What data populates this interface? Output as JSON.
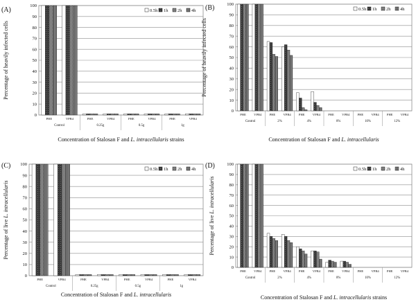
{
  "colors": {
    "series": [
      "#ffffff",
      "#3a3a3a",
      "#8e8e8e",
      "#5a5a5a"
    ],
    "grid": "#8c8c8c",
    "bar_edge": "#222222",
    "background": "#ffffff"
  },
  "chart_data": [
    {
      "type": "bar",
      "panel_label": "(A)",
      "title": "",
      "xlabel": "Concentration of Stalosan F and L. intracellularis strains",
      "xlabel_parts": [
        {
          "text": "Concentration of Stalosan F and ",
          "italic": false
        },
        {
          "text": "L. intracellularis",
          "italic": true
        },
        {
          "text": " strains",
          "italic": false
        }
      ],
      "ylabel": "Percentage of heavily infected cells",
      "ylabel_parts": [
        {
          "text": "Percentage of heavily infected cells",
          "italic": false
        }
      ],
      "ylim": [
        0,
        100
      ],
      "yticks": [
        0,
        10,
        20,
        30,
        40,
        50,
        60,
        70,
        80,
        90,
        100
      ],
      "grid": true,
      "legend_position": "top-right",
      "series_names": [
        "0.5h",
        "1h",
        "2h",
        "4h"
      ],
      "categories": [
        {
          "group": "Control",
          "strains": [
            {
              "name": "PHE",
              "values": [
                100,
                100,
                100,
                100
              ]
            },
            {
              "name": "VPB4",
              "values": [
                100,
                100,
                100,
                100
              ]
            }
          ]
        },
        {
          "group": "0.25g",
          "strains": [
            {
              "name": "PHE",
              "values": [
                1,
                1,
                1,
                1
              ]
            },
            {
              "name": "VPB4",
              "values": [
                1,
                1,
                1,
                1
              ]
            }
          ]
        },
        {
          "group": "0.5g",
          "strains": [
            {
              "name": "PHE",
              "values": [
                1,
                1,
                1,
                1
              ]
            },
            {
              "name": "VPB4",
              "values": [
                1,
                1,
                1,
                1
              ]
            }
          ]
        },
        {
          "group": "1g",
          "strains": [
            {
              "name": "PHE",
              "values": [
                1,
                1,
                1,
                1
              ]
            },
            {
              "name": "VPB4",
              "values": [
                1,
                1,
                1,
                1
              ]
            }
          ]
        }
      ]
    },
    {
      "type": "bar",
      "panel_label": "(B)",
      "title": "",
      "xlabel": "Concentration of Stalosan F and L. intracellularis",
      "xlabel_parts": [
        {
          "text": "Concentration of Stalosan F and ",
          "italic": false
        },
        {
          "text": "L. intracellularis",
          "italic": true
        }
      ],
      "ylabel": "Percentage of heavily infected cells",
      "ylabel_parts": [
        {
          "text": "Percentage of heavily infected cells",
          "italic": false
        }
      ],
      "ylim": [
        0,
        100
      ],
      "yticks": [
        0,
        10,
        20,
        30,
        40,
        50,
        60,
        70,
        80,
        90,
        100
      ],
      "grid": true,
      "legend_position": "top-right",
      "series_names": [
        "0.5h",
        "1h",
        "2h",
        "4h"
      ],
      "categories": [
        {
          "group": "Control",
          "strains": [
            {
              "name": "PHE",
              "values": [
                100,
                100,
                100,
                100
              ]
            },
            {
              "name": "VPB4",
              "values": [
                100,
                100,
                100,
                100
              ]
            }
          ]
        },
        {
          "group": "2%",
          "strains": [
            {
              "name": "PHE",
              "values": [
                65,
                64,
                53,
                51
              ]
            },
            {
              "name": "VPB4",
              "values": [
                60,
                62,
                57,
                52
              ]
            }
          ]
        },
        {
          "group": "4%",
          "strains": [
            {
              "name": "PHE",
              "values": [
                17,
                12,
                3,
                1
              ]
            },
            {
              "name": "VPB4",
              "values": [
                18,
                8,
                5,
                3
              ]
            }
          ]
        },
        {
          "group": "8%",
          "strains": [
            {
              "name": "PHE",
              "values": [
                0,
                0,
                0,
                0
              ]
            },
            {
              "name": "VPB4",
              "values": [
                0,
                0,
                0,
                0
              ]
            }
          ]
        },
        {
          "group": "10%",
          "strains": [
            {
              "name": "PHE",
              "values": [
                0,
                0,
                0,
                0
              ]
            },
            {
              "name": "VPB4",
              "values": [
                0,
                0,
                0,
                0
              ]
            }
          ]
        },
        {
          "group": "12%",
          "strains": [
            {
              "name": "PHE",
              "values": [
                0,
                0,
                0,
                0
              ]
            },
            {
              "name": "VPB4",
              "values": [
                0,
                0,
                0,
                0
              ]
            }
          ]
        }
      ]
    },
    {
      "type": "bar",
      "panel_label": "(C)",
      "title": "",
      "xlabel": "Concentration of Stalosan F and L. intracellularis",
      "xlabel_parts": [
        {
          "text": "Concentration of Stalosan F and ",
          "italic": false
        },
        {
          "text": "L. intracellularis",
          "italic": true
        }
      ],
      "ylabel": "Percentage of live L. intracellularis",
      "ylabel_parts": [
        {
          "text": "Percentage of live ",
          "italic": false
        },
        {
          "text": "L. intracellularis",
          "italic": true
        }
      ],
      "ylim": [
        0,
        100
      ],
      "yticks": [
        0,
        10,
        20,
        30,
        40,
        50,
        60,
        70,
        80,
        90,
        100
      ],
      "grid": true,
      "legend_position": "top-right",
      "series_names": [
        "0.5h",
        "1h",
        "2h",
        "4h"
      ],
      "categories": [
        {
          "group": "Control",
          "strains": [
            {
              "name": "PHE",
              "values": [
                100,
                100,
                100,
                100
              ]
            },
            {
              "name": "VPB4",
              "values": [
                100,
                100,
                100,
                100
              ]
            }
          ]
        },
        {
          "group": "0.25g",
          "strains": [
            {
              "name": "PHE",
              "values": [
                1,
                1,
                1,
                1
              ]
            },
            {
              "name": "VPB4",
              "values": [
                1,
                1,
                1,
                1
              ]
            }
          ]
        },
        {
          "group": "0.5g",
          "strains": [
            {
              "name": "PHE",
              "values": [
                1,
                1,
                1,
                1
              ]
            },
            {
              "name": "VPB4",
              "values": [
                1,
                1,
                1,
                1
              ]
            }
          ]
        },
        {
          "group": "1g",
          "strains": [
            {
              "name": "PHE",
              "values": [
                1,
                1,
                1,
                1
              ]
            },
            {
              "name": "VPB4",
              "values": [
                1,
                1,
                1,
                1
              ]
            }
          ]
        }
      ]
    },
    {
      "type": "bar",
      "panel_label": "(D)",
      "title": "",
      "xlabel": "Concentration of Stalosan F and L. intracellularis strains",
      "xlabel_parts": [
        {
          "text": "Concentration of Stalosan F and ",
          "italic": false
        },
        {
          "text": "L. intracellularis",
          "italic": true
        },
        {
          "text": " strains",
          "italic": false
        }
      ],
      "ylabel": "Percentage of live L. intracellularis",
      "ylabel_parts": [
        {
          "text": "Percentage of live ",
          "italic": false
        },
        {
          "text": "L. intracellularis",
          "italic": true
        }
      ],
      "ylim": [
        0,
        100
      ],
      "yticks": [
        0,
        10,
        20,
        30,
        40,
        50,
        60,
        70,
        80,
        90,
        100
      ],
      "grid": true,
      "legend_position": "top-right",
      "series_names": [
        "0.5h",
        "1h",
        "2h",
        "4h"
      ],
      "categories": [
        {
          "group": "Control",
          "strains": [
            {
              "name": "PHE",
              "values": [
                100,
                100,
                100,
                100
              ]
            },
            {
              "name": "VPB4",
              "values": [
                100,
                100,
                100,
                100
              ]
            }
          ]
        },
        {
          "group": "2%",
          "strains": [
            {
              "name": "PHE",
              "values": [
                33,
                30,
                28,
                26
              ]
            },
            {
              "name": "VPB4",
              "values": [
                32,
                30,
                26,
                24
              ]
            }
          ]
        },
        {
          "group": "4%",
          "strains": [
            {
              "name": "PHE",
              "values": [
                20,
                18,
                16,
                13
              ]
            },
            {
              "name": "VPB4",
              "values": [
                16,
                16,
                15,
                8
              ]
            }
          ]
        },
        {
          "group": "8%",
          "strains": [
            {
              "name": "PHE",
              "values": [
                5,
                7,
                6,
                5
              ]
            },
            {
              "name": "VPB4",
              "values": [
                6,
                6,
                5,
                3
              ]
            }
          ]
        },
        {
          "group": "10%",
          "strains": [
            {
              "name": "PHE",
              "values": [
                0,
                0,
                0,
                0
              ]
            },
            {
              "name": "VPB4",
              "values": [
                0,
                0,
                0,
                0
              ]
            }
          ]
        },
        {
          "group": "12%",
          "strains": [
            {
              "name": "PHE",
              "values": [
                0,
                0,
                0,
                0
              ]
            },
            {
              "name": "VPB4",
              "values": [
                0,
                0,
                0,
                0
              ]
            }
          ]
        }
      ]
    }
  ]
}
